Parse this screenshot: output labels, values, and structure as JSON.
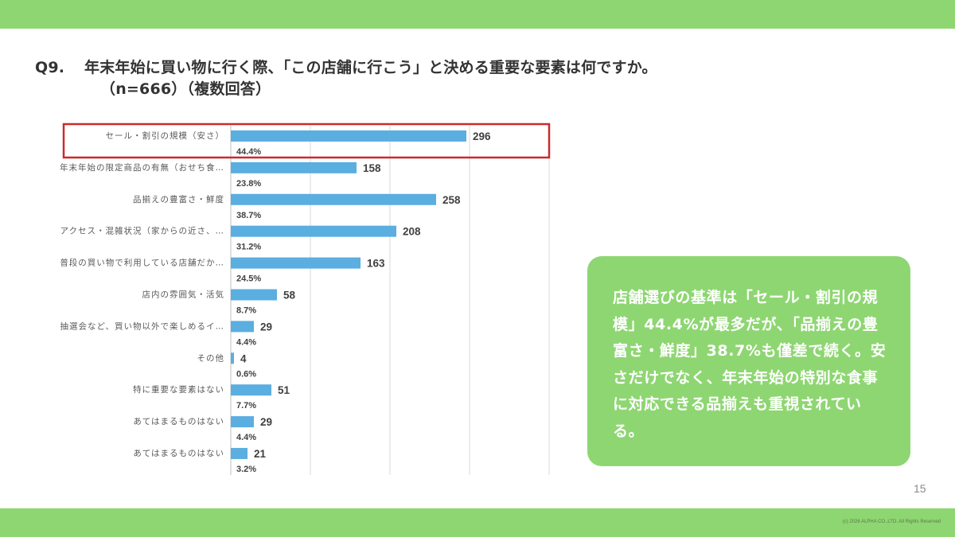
{
  "slide": {
    "title_q": "Q9.",
    "title_main": "年末年始に買い物に行く際、「この店舗に行こう」と決める重要な要素は何ですか。",
    "title_sub": "（n=666）（複数回答）",
    "page_number": "15",
    "copyright": "(c) 2026 ALPHA CO.,LTD. All Rights Reserved",
    "callout_text": "店舗選びの基準は「セール・割引の規模」44.4%が最多だが、「品揃えの豊富さ・鮮度」38.7%も僅差で続く。安さだけでなく、年末年始の特別な食事に対応できる品揃えも重視されている。",
    "colors": {
      "band": "#8ed672",
      "bar": "#5aaee0",
      "highlight": "#cc2a2a",
      "callout_bg": "#8ed672"
    }
  },
  "chart_data": {
    "type": "bar",
    "orientation": "horizontal",
    "categories": [
      "セール・割引の規模（安さ）",
      "年末年始の限定商品の有無（おせち食…",
      "品揃えの豊富さ・鮮度",
      "アクセス・混雑状況（家からの近さ、…",
      "普段の買い物で利用している店舗だか…",
      "店内の雰囲気・活気",
      "抽選会など、買い物以外で楽しめるイ…",
      "その他",
      "特に重要な要素はない",
      "あてはまるものはない",
      "あてはまるものはない"
    ],
    "values": [
      296,
      158,
      258,
      208,
      163,
      58,
      29,
      4,
      51,
      29,
      21
    ],
    "percent_labels": [
      "44.4%",
      "23.8%",
      "38.7%",
      "31.2%",
      "24.5%",
      "8.7%",
      "4.4%",
      "0.6%",
      "7.7%",
      "4.4%",
      "3.2%"
    ],
    "xlim": [
      0,
      400
    ],
    "grid": true,
    "highlighted_index": 0
  }
}
